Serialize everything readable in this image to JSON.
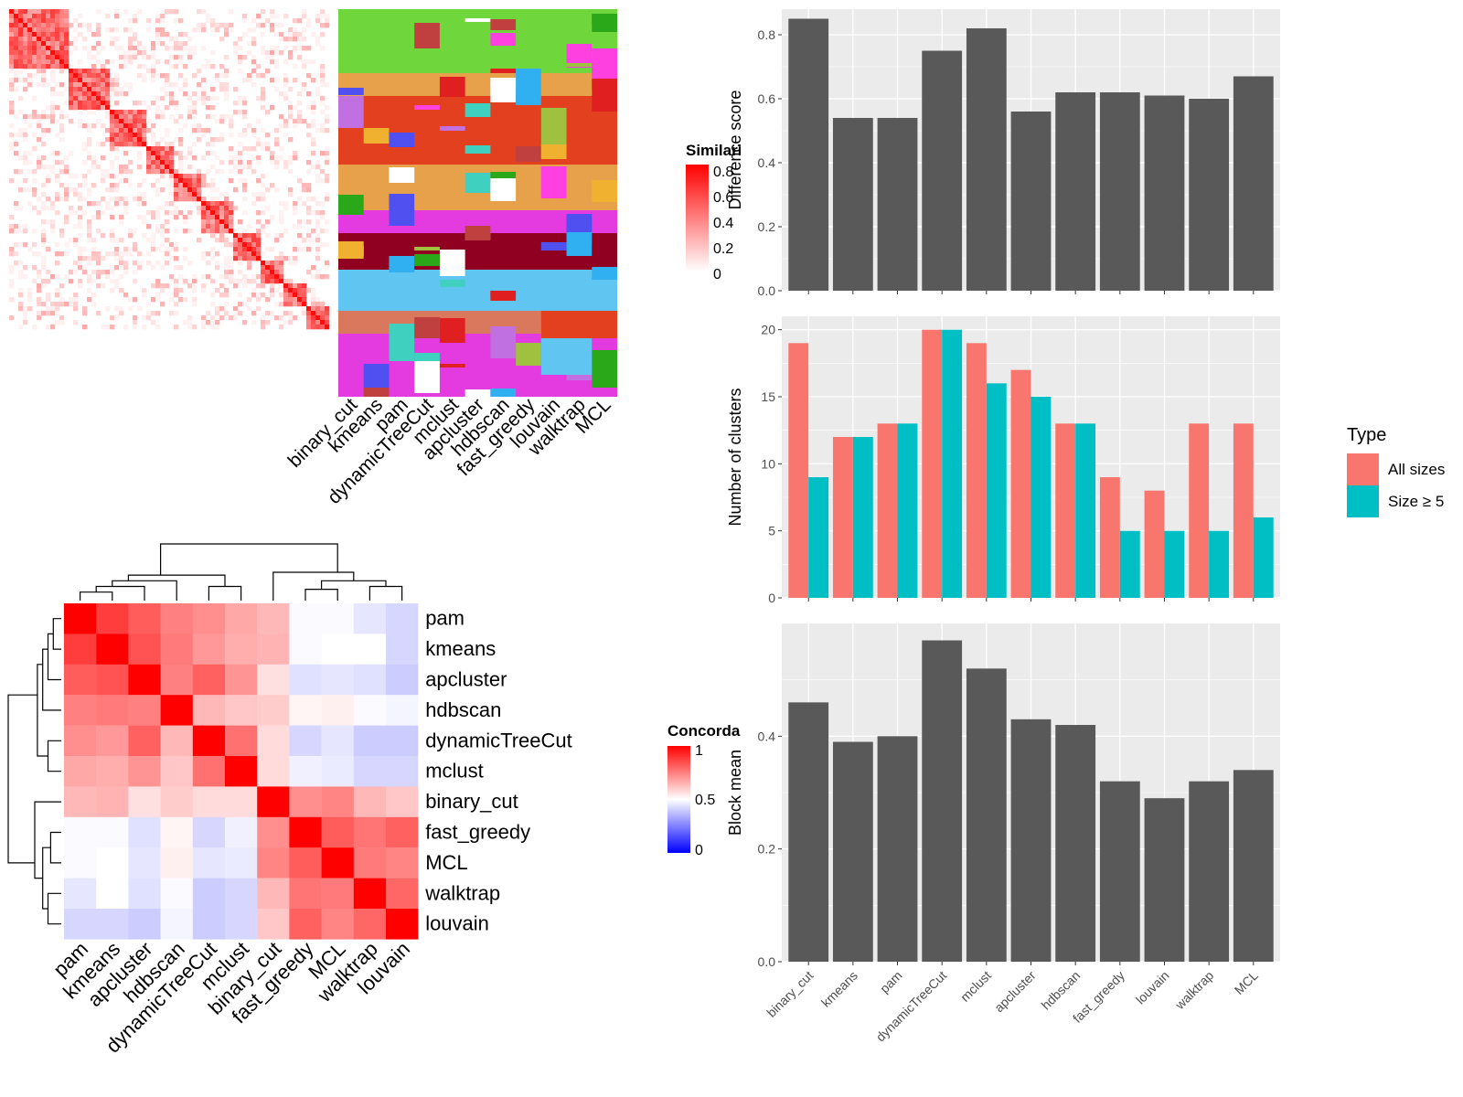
{
  "colors": {
    "heat_low": "#ffffff",
    "heat_high": "#ff0000",
    "conc_low": "#0000ff",
    "conc_mid": "#ffffff",
    "conc_high": "#ff0000",
    "bar_dark": "#595959",
    "all_sizes": "#f8766d",
    "size5": "#00bfc4",
    "panel_bg": "#ebebeb",
    "grid": "#ffffff"
  },
  "similarity_panel": {
    "legend_title": "Similarity",
    "legend_ticks": [
      "0",
      "0.2",
      "0.4",
      "0.6",
      "0.8"
    ],
    "methods": [
      "binary_cut",
      "kmeans",
      "pam",
      "dynamicTreeCut",
      "mclust",
      "apcluster",
      "hdbscan",
      "fast_greedy",
      "louvain",
      "walktrap",
      "MCL"
    ]
  },
  "concordance_panel": {
    "legend_title": "Concordance",
    "legend_ticks": [
      "0",
      "0.5",
      "1"
    ]
  },
  "chart_data": [
    {
      "type": "heatmap",
      "name": "concordance",
      "rows": [
        "pam",
        "kmeans",
        "apcluster",
        "hdbscan",
        "dynamicTreeCut",
        "mclust",
        "binary_cut",
        "fast_greedy",
        "MCL",
        "walktrap",
        "louvain"
      ],
      "columns": [
        "pam",
        "kmeans",
        "apcluster",
        "hdbscan",
        "dynamicTreeCut",
        "mclust",
        "binary_cut",
        "fast_greedy",
        "MCL",
        "walktrap",
        "louvain"
      ],
      "values": [
        [
          1.0,
          0.88,
          0.82,
          0.75,
          0.72,
          0.67,
          0.64,
          0.49,
          0.49,
          0.45,
          0.42
        ],
        [
          0.88,
          1.0,
          0.84,
          0.76,
          0.7,
          0.66,
          0.65,
          0.49,
          0.5,
          0.5,
          0.42
        ],
        [
          0.82,
          0.84,
          1.0,
          0.75,
          0.81,
          0.71,
          0.56,
          0.44,
          0.45,
          0.44,
          0.4
        ],
        [
          0.75,
          0.76,
          0.75,
          1.0,
          0.64,
          0.61,
          0.6,
          0.52,
          0.53,
          0.49,
          0.48
        ],
        [
          0.72,
          0.7,
          0.81,
          0.64,
          1.0,
          0.78,
          0.57,
          0.42,
          0.45,
          0.4,
          0.4
        ],
        [
          0.67,
          0.66,
          0.71,
          0.61,
          0.78,
          1.0,
          0.57,
          0.47,
          0.46,
          0.42,
          0.42
        ],
        [
          0.64,
          0.65,
          0.56,
          0.6,
          0.57,
          0.57,
          1.0,
          0.72,
          0.74,
          0.64,
          0.61
        ],
        [
          0.49,
          0.49,
          0.44,
          0.52,
          0.42,
          0.47,
          0.72,
          1.0,
          0.82,
          0.77,
          0.81
        ],
        [
          0.49,
          0.5,
          0.45,
          0.53,
          0.45,
          0.46,
          0.74,
          0.82,
          1.0,
          0.76,
          0.74
        ],
        [
          0.45,
          0.5,
          0.44,
          0.49,
          0.4,
          0.42,
          0.64,
          0.77,
          0.76,
          1.0,
          0.8
        ],
        [
          0.42,
          0.42,
          0.4,
          0.48,
          0.4,
          0.42,
          0.61,
          0.81,
          0.74,
          0.8,
          1.0
        ]
      ]
    },
    {
      "type": "bar",
      "name": "difference",
      "categories": [
        "binary_cut",
        "kmeans",
        "pam",
        "dynamicTreeCut",
        "mclust",
        "apcluster",
        "hdbscan",
        "fast_greedy",
        "louvain",
        "walktrap",
        "MCL"
      ],
      "values": [
        0.85,
        0.54,
        0.54,
        0.75,
        0.82,
        0.56,
        0.62,
        0.62,
        0.61,
        0.6,
        0.67
      ],
      "ylabel": "Difference score",
      "ylim": [
        0,
        0.88
      ],
      "yticks": [
        "0.0",
        "0.2",
        "0.4",
        "0.6",
        "0.8"
      ],
      "grid": true
    },
    {
      "type": "bar",
      "name": "clusters",
      "categories": [
        "binary_cut",
        "kmeans",
        "pam",
        "dynamicTreeCut",
        "mclust",
        "apcluster",
        "hdbscan",
        "fast_greedy",
        "louvain",
        "walktrap",
        "MCL"
      ],
      "series": [
        {
          "name": "All sizes",
          "values": [
            19,
            12,
            13,
            20,
            19,
            17,
            13,
            9,
            8,
            13,
            13
          ]
        },
        {
          "name": "Size ≥ 5",
          "values": [
            9,
            12,
            13,
            20,
            16,
            15,
            13,
            5,
            5,
            5,
            6
          ]
        }
      ],
      "ylabel": "Number of clusters",
      "ylim": [
        0,
        21
      ],
      "yticks": [
        "0",
        "5",
        "10",
        "15",
        "20"
      ],
      "legend_title": "Type",
      "legend_position": "right",
      "grid": true
    },
    {
      "type": "bar",
      "name": "block_mean",
      "categories": [
        "binary_cut",
        "kmeans",
        "pam",
        "dynamicTreeCut",
        "mclust",
        "apcluster",
        "hdbscan",
        "fast_greedy",
        "louvain",
        "walktrap",
        "MCL"
      ],
      "values": [
        0.46,
        0.39,
        0.4,
        0.57,
        0.52,
        0.43,
        0.42,
        0.32,
        0.29,
        0.32,
        0.34
      ],
      "ylabel": "Block mean",
      "ylim": [
        0,
        0.6
      ],
      "yticks": [
        "0.0",
        "0.2",
        "0.4"
      ],
      "grid": true
    }
  ]
}
